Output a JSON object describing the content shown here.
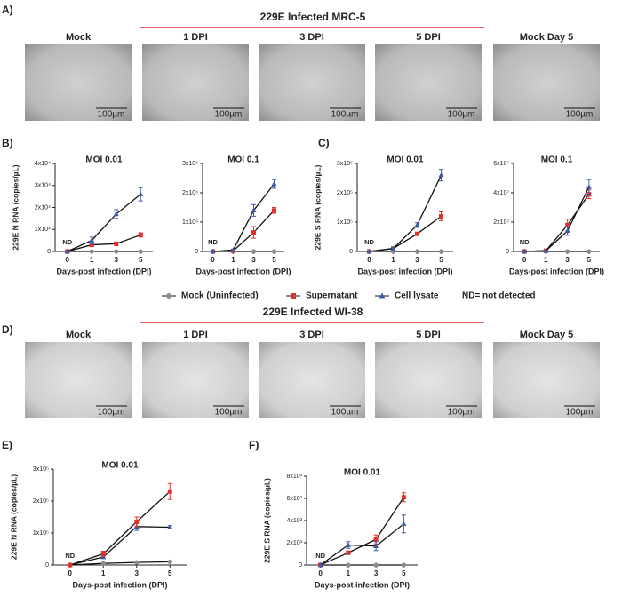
{
  "figure": {
    "panels": [
      "A)",
      "B)",
      "C)",
      "D)",
      "E)",
      "F)"
    ],
    "rows": [
      {
        "title": "229E Infected MRC-5",
        "images": [
          {
            "label": "Mock",
            "scale": "100µm"
          },
          {
            "label": "1 DPI",
            "scale": "100µm"
          },
          {
            "label": "3 DPI",
            "scale": "100µm"
          },
          {
            "label": "5 DPI",
            "scale": "100µm"
          },
          {
            "label": "Mock Day 5",
            "scale": "100µm"
          }
        ]
      },
      {
        "title": "229E Infected WI-38",
        "images": [
          {
            "label": "Mock",
            "scale": "100µm"
          },
          {
            "label": "1 DPI",
            "scale": "100µm"
          },
          {
            "label": "3 DPI",
            "scale": "100µm"
          },
          {
            "label": "5 DPI",
            "scale": "100µm"
          },
          {
            "label": "Mock Day 5",
            "scale": "100µm"
          }
        ]
      }
    ],
    "legend_note": "ND= not detected"
  },
  "chart_data": [
    {
      "type": "line",
      "title": "MOI 0.01",
      "x_label": "Days-post infection (DPI)",
      "y_label": "229E N RNA (copies/µL)",
      "annotation": "ND",
      "categories": [
        "0",
        "1",
        "3",
        "5"
      ],
      "ylim": [
        0,
        40000
      ],
      "yticks": [
        0,
        {
          "value": 10000,
          "label": "1x10⁴"
        },
        {
          "value": 20000,
          "label": "2x10⁴"
        },
        {
          "value": 30000,
          "label": "3x10⁴"
        },
        {
          "value": 40000,
          "label": "4x10⁴"
        }
      ],
      "series": [
        {
          "name": "Mock (Uninfected)",
          "color": "#8c8c8c",
          "marker": "circle",
          "values": [
            0,
            0,
            0,
            0
          ],
          "errors": [
            0,
            0,
            0,
            0
          ]
        },
        {
          "name": "Supernatant",
          "color": "#e0322c",
          "marker": "square",
          "values": [
            0,
            3000,
            3500,
            7500
          ],
          "errors": [
            0,
            800,
            700,
            1000
          ]
        },
        {
          "name": "Cell lysate",
          "color": "#3b5ba5",
          "marker": "triangle",
          "values": [
            0,
            5000,
            17000,
            26000
          ],
          "errors": [
            0,
            1500,
            2000,
            3000
          ]
        }
      ]
    },
    {
      "type": "line",
      "title": "MOI 0.1",
      "x_label": "Days-post infection (DPI)",
      "annotation": "ND",
      "categories": [
        "0",
        "1",
        "3",
        "5"
      ],
      "ylim": [
        0,
        3000000
      ],
      "yticks": [
        0,
        {
          "value": 1000000,
          "label": "1x10⁶"
        },
        {
          "value": 2000000,
          "label": "2x10⁶"
        },
        {
          "value": 3000000,
          "label": "3x10⁶"
        }
      ],
      "series": [
        {
          "name": "Mock (Uninfected)",
          "color": "#8c8c8c",
          "marker": "circle",
          "values": [
            0,
            0,
            0,
            0
          ],
          "errors": [
            0,
            0,
            0,
            0
          ]
        },
        {
          "name": "Supernatant",
          "color": "#e0322c",
          "marker": "square",
          "values": [
            0,
            20000,
            650000,
            1400000
          ],
          "errors": [
            0,
            10000,
            200000,
            100000
          ]
        },
        {
          "name": "Cell lysate",
          "color": "#3b5ba5",
          "marker": "triangle",
          "values": [
            0,
            50000,
            1400000,
            2300000
          ],
          "errors": [
            0,
            20000,
            200000,
            150000
          ]
        }
      ]
    },
    {
      "type": "line",
      "title": "MOI 0.01",
      "x_label": "Days-post infection (DPI)",
      "y_label": "229E S RNA (copies/µL)",
      "annotation": "ND",
      "categories": [
        "0",
        "1",
        "3",
        "5"
      ],
      "ylim": [
        0,
        300000
      ],
      "yticks": [
        0,
        {
          "value": 100000,
          "label": "1x10⁵"
        },
        {
          "value": 200000,
          "label": "2x10⁵"
        },
        {
          "value": 300000,
          "label": "3x10⁵"
        }
      ],
      "series": [
        {
          "name": "Mock (Uninfected)",
          "color": "#8c8c8c",
          "marker": "circle",
          "values": [
            0,
            0,
            0,
            0
          ],
          "errors": [
            0,
            0,
            0,
            0
          ]
        },
        {
          "name": "Supernatant",
          "color": "#e0322c",
          "marker": "square",
          "values": [
            0,
            10000,
            60000,
            120000
          ],
          "errors": [
            0,
            3000,
            5000,
            15000
          ]
        },
        {
          "name": "Cell lysate",
          "color": "#3b5ba5",
          "marker": "triangle",
          "values": [
            0,
            10000,
            90000,
            260000
          ],
          "errors": [
            0,
            3000,
            8000,
            20000
          ]
        }
      ]
    },
    {
      "type": "line",
      "title": "MOI 0.1",
      "x_label": "Days-post infection (DPI)",
      "annotation": "ND",
      "categories": [
        "0",
        "1",
        "3",
        "5"
      ],
      "ylim": [
        0,
        60000000
      ],
      "yticks": [
        0,
        {
          "value": 20000000,
          "label": "2x10⁷"
        },
        {
          "value": 40000000,
          "label": "4x10⁷"
        },
        {
          "value": 60000000,
          "label": "6x10⁷"
        }
      ],
      "series": [
        {
          "name": "Mock (Uninfected)",
          "color": "#8c8c8c",
          "marker": "circle",
          "values": [
            0,
            0,
            0,
            0
          ],
          "errors": [
            0,
            0,
            0,
            0
          ]
        },
        {
          "name": "Supernatant",
          "color": "#e0322c",
          "marker": "square",
          "values": [
            0,
            500000,
            18000000,
            39000000
          ],
          "errors": [
            0,
            200000,
            4000000,
            3000000
          ]
        },
        {
          "name": "Cell lysate",
          "color": "#3b5ba5",
          "marker": "triangle",
          "values": [
            0,
            500000,
            14000000,
            44000000
          ],
          "errors": [
            0,
            200000,
            3000000,
            5000000
          ]
        }
      ]
    },
    {
      "type": "line",
      "title": "MOI 0.01",
      "x_label": "Days-post infection (DPI)",
      "y_label": "229E N RNA (copies/µL)",
      "annotation": "ND",
      "categories": [
        "0",
        "1",
        "3",
        "5"
      ],
      "ylim": [
        0,
        300000
      ],
      "yticks": [
        0,
        {
          "value": 100000,
          "label": "1x10⁵"
        },
        {
          "value": 200000,
          "label": "2x10⁵"
        },
        {
          "value": 300000,
          "label": "3x10⁵"
        }
      ],
      "series": [
        {
          "name": "Mock (Uninfected)",
          "color": "#8c8c8c",
          "marker": "circle",
          "values": [
            0,
            5000,
            8000,
            10000
          ],
          "errors": [
            0,
            1000,
            1000,
            1000
          ]
        },
        {
          "name": "Cell lysate",
          "color": "#3b5ba5",
          "marker": "triangle",
          "values": [
            0,
            25000,
            120000,
            118000
          ],
          "errors": [
            0,
            5000,
            12000,
            5000
          ]
        },
        {
          "name": "Supernatant",
          "color": "#e0322c",
          "marker": "square",
          "values": [
            0,
            35000,
            135000,
            230000
          ],
          "errors": [
            0,
            8000,
            15000,
            25000
          ]
        }
      ]
    },
    {
      "type": "line",
      "title": "MOI 0.01",
      "x_label": "Days-post infection (DPI)",
      "y_label": "229E S RNA (copies/µL)",
      "annotation": "ND",
      "categories": [
        "0",
        "1",
        "3",
        "5"
      ],
      "ylim": [
        0,
        8000
      ],
      "yticks": [
        0,
        {
          "value": 2000,
          "label": "2x10³"
        },
        {
          "value": 4000,
          "label": "4x10³"
        },
        {
          "value": 6000,
          "label": "6x10³"
        },
        {
          "value": 8000,
          "label": "8x10³"
        }
      ],
      "series": [
        {
          "name": "Mock (Uninfected)",
          "color": "#8c8c8c",
          "marker": "circle",
          "values": [
            0,
            0,
            0,
            0
          ],
          "errors": [
            0,
            0,
            0,
            0
          ]
        },
        {
          "name": "Supernatant",
          "color": "#e0322c",
          "marker": "square",
          "values": [
            0,
            1100,
            2300,
            6100
          ],
          "errors": [
            0,
            150,
            400,
            400
          ]
        },
        {
          "name": "Cell lysate",
          "color": "#3b5ba5",
          "marker": "triangle",
          "values": [
            0,
            1800,
            1700,
            3700
          ],
          "errors": [
            0,
            300,
            400,
            800
          ]
        }
      ]
    }
  ]
}
